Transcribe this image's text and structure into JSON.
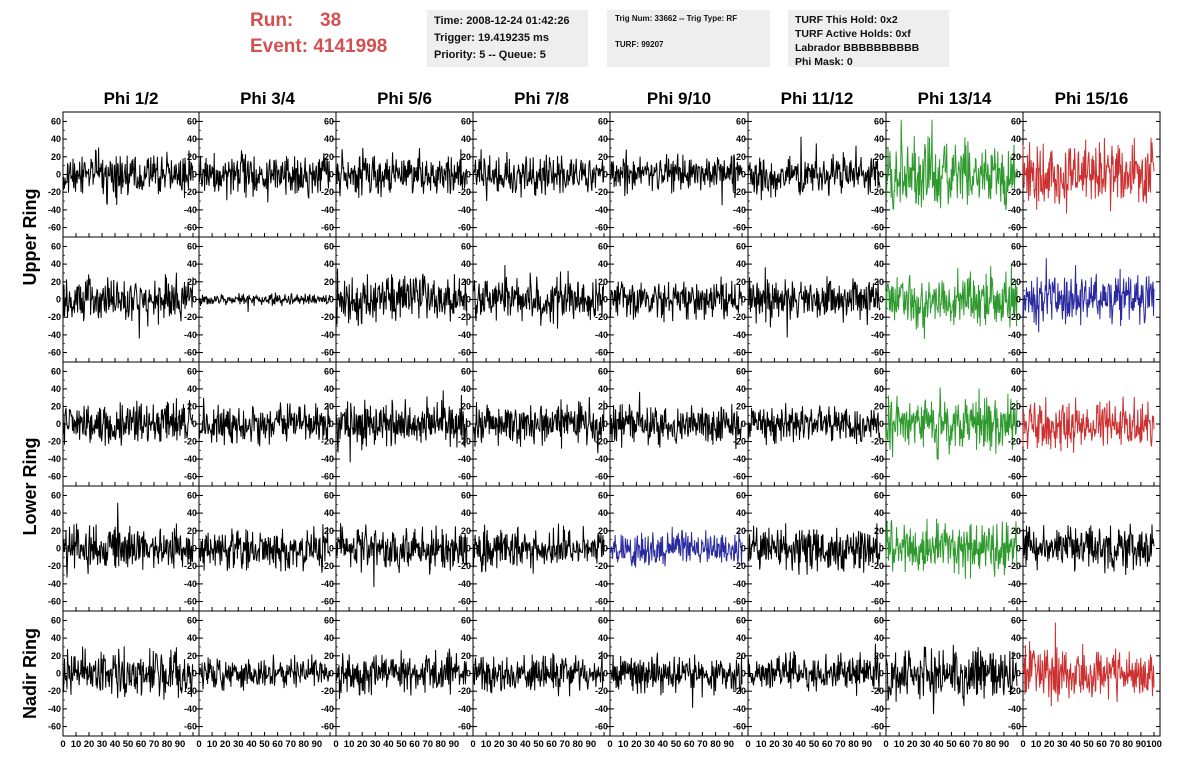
{
  "header": {
    "run_label": "Run:",
    "run_value": "38",
    "event_label": "Event:",
    "event_value": "4141998"
  },
  "info_boxes": {
    "time": "Time: 2008-12-24 01:42:26",
    "trigger": "Trigger: 19.419235 ms",
    "priority": "Priority: 5 -- Queue: 5",
    "trig_num": "Trig Num: 33662 -- Trig Type: RF",
    "turf": "TURF: 99207",
    "turf_this_hold": "TURF This Hold: 0x2",
    "turf_active_holds": "TURF Active Holds: 0xf",
    "labrador": "Labrador BBBBBBBBBB",
    "phi_mask": "Phi Mask: 0"
  },
  "colors": {
    "header_red": "#d45050",
    "info_bg": "#eeeeee",
    "black": "#000000",
    "green": "#2e9a2e",
    "red": "#cc3030",
    "blue": "#2a2aa0"
  },
  "chart_data": {
    "type": "line",
    "columns": [
      "Phi 1/2",
      "Phi 3/4",
      "Phi 5/6",
      "Phi 7/8",
      "Phi 9/10",
      "Phi 11/12",
      "Phi 13/14",
      "Phi 15/16"
    ],
    "ring_labels": [
      {
        "text": "Upper Ring",
        "rows": [
          0,
          1
        ]
      },
      {
        "text": "Lower Ring",
        "rows": [
          2,
          3
        ]
      },
      {
        "text": "Nadir Ring",
        "rows": [
          4
        ]
      }
    ],
    "xlim": [
      0,
      100
    ],
    "ylim": [
      -65,
      65
    ],
    "y_ticks": [
      -60,
      -40,
      -20,
      0,
      20,
      40,
      60
    ],
    "x_ticks": [
      0,
      10,
      20,
      30,
      40,
      50,
      60,
      70,
      80,
      90,
      100
    ],
    "samples_per_trace": 260,
    "trace_colors": [
      [
        "black",
        "black",
        "black",
        "black",
        "black",
        "black",
        "green",
        "red"
      ],
      [
        "black",
        "black",
        "black",
        "black",
        "black",
        "black",
        "green",
        "blue"
      ],
      [
        "black",
        "black",
        "black",
        "black",
        "black",
        "black",
        "green",
        "red"
      ],
      [
        "black",
        "black",
        "black",
        "black",
        "blue",
        "black",
        "green",
        "black"
      ],
      [
        "black",
        "black",
        "black",
        "black",
        "black",
        "black",
        "black",
        "red"
      ]
    ],
    "trace_amplitude": [
      [
        12,
        11,
        12,
        11,
        11,
        10,
        18,
        18
      ],
      [
        12,
        3,
        13,
        12,
        11,
        12,
        14,
        14
      ],
      [
        12,
        11,
        13,
        12,
        11,
        10,
        16,
        13
      ],
      [
        12,
        12,
        12,
        11,
        10,
        12,
        15,
        12
      ],
      [
        13,
        9,
        11,
        10,
        10,
        10,
        15,
        14
      ]
    ]
  }
}
